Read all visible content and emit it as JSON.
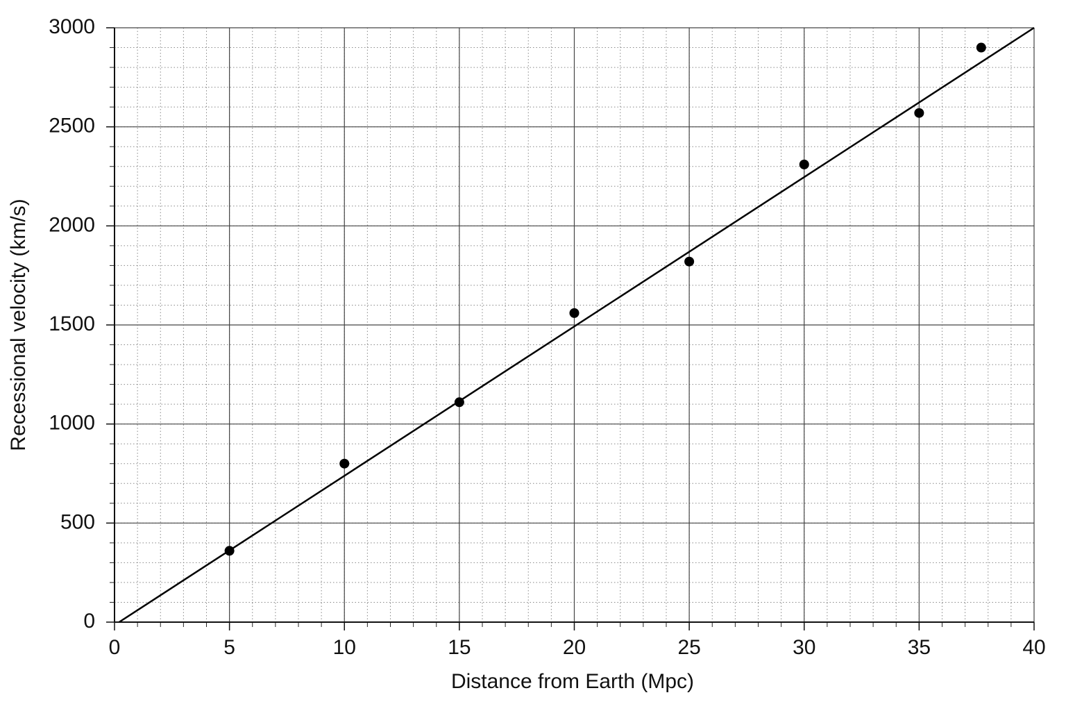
{
  "chart_data": {
    "type": "scatter",
    "xlabel": "Distance from Earth (Mpc)",
    "ylabel": "Recessional velocity (km/s)",
    "series": [
      {
        "type": "scatter",
        "color": "#000000",
        "x": [
          5,
          10,
          15,
          20,
          25,
          30,
          35,
          37.7
        ],
        "values": [
          360,
          800,
          1110,
          1560,
          1820,
          2310,
          2570,
          2900
        ]
      },
      {
        "type": "line",
        "color": "#000000",
        "x": [
          0.2,
          40
        ],
        "values": [
          0,
          3000
        ]
      }
    ],
    "xlim": [
      0,
      40
    ],
    "ylim": [
      0,
      3000
    ],
    "xticks": [
      0,
      5,
      10,
      15,
      20,
      25,
      30,
      35,
      40
    ],
    "yticks": [
      0,
      500,
      1000,
      1500,
      2000,
      2500,
      3000
    ],
    "grid": true,
    "minor_grid": {
      "x": 1,
      "y": 100
    }
  }
}
